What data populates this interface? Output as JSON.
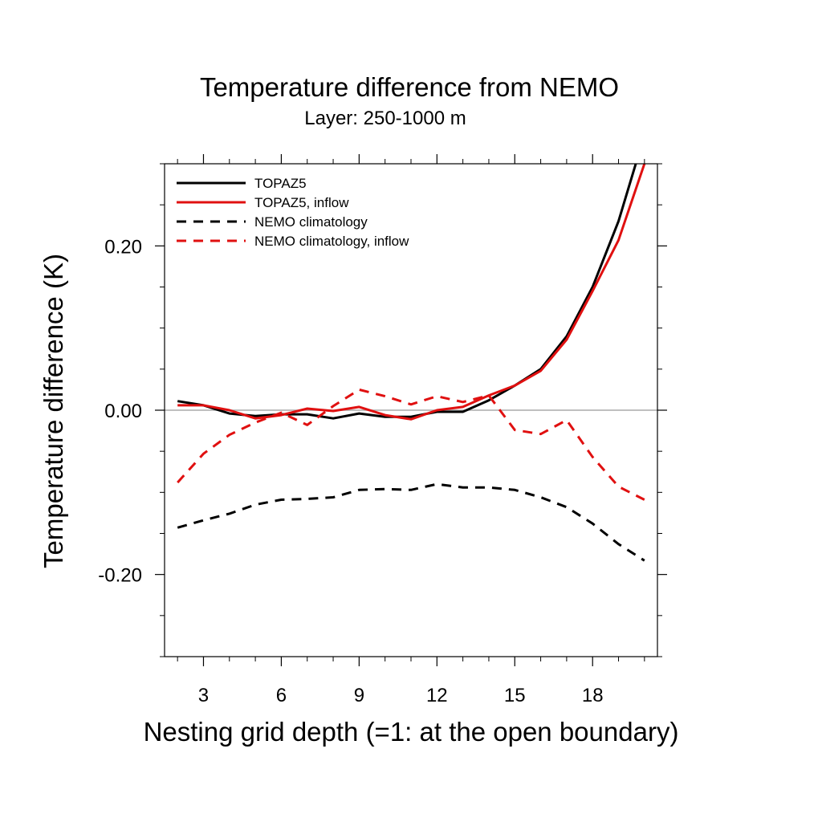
{
  "chart_data": {
    "type": "line",
    "title": "Temperature difference from NEMO",
    "subtitle": "Layer: 250-1000 m",
    "xlabel": "Nesting grid depth (=1: at the open boundary)",
    "ylabel": "Temperature difference (K)",
    "xlim": [
      1.5,
      20.5
    ],
    "ylim": [
      -0.3,
      0.3
    ],
    "x_ticks": [
      3,
      6,
      9,
      12,
      15,
      18
    ],
    "x_tick_labels": [
      "3",
      "6",
      "9",
      "12",
      "15",
      "18"
    ],
    "y_ticks": [
      -0.2,
      0.0,
      0.2
    ],
    "y_tick_labels": [
      "-0.20",
      "0.00",
      "0.20"
    ],
    "legend_position": "top-left",
    "grid": false,
    "zero_line": true,
    "x": [
      2,
      3,
      4,
      5,
      6,
      7,
      8,
      9,
      10,
      11,
      12,
      13,
      14,
      15,
      16,
      17,
      18,
      19,
      20
    ],
    "series": [
      {
        "name": "TOPAZ5",
        "color": "#000000",
        "dash": "solid",
        "values": [
          0.011,
          0.006,
          -0.004,
          -0.007,
          -0.005,
          -0.005,
          -0.01,
          -0.004,
          -0.008,
          -0.008,
          -0.002,
          -0.002,
          0.012,
          0.03,
          0.05,
          0.09,
          0.15,
          0.23,
          0.335
        ]
      },
      {
        "name": "TOPAZ5, inflow",
        "color": "#e01010",
        "dash": "solid",
        "values": [
          0.006,
          0.006,
          0.0,
          -0.01,
          -0.006,
          0.002,
          -0.001,
          0.004,
          -0.006,
          -0.011,
          0.0,
          0.004,
          0.018,
          0.03,
          0.048,
          0.086,
          0.145,
          0.207,
          0.3
        ]
      },
      {
        "name": "NEMO climatology",
        "color": "#000000",
        "dash": "dashed",
        "values": [
          -0.143,
          -0.134,
          -0.126,
          -0.115,
          -0.109,
          -0.108,
          -0.106,
          -0.097,
          -0.096,
          -0.097,
          -0.09,
          -0.094,
          -0.094,
          -0.097,
          -0.106,
          -0.118,
          -0.138,
          -0.163,
          -0.183
        ]
      },
      {
        "name": "NEMO climatology, inflow",
        "color": "#e01010",
        "dash": "dashed",
        "values": [
          -0.088,
          -0.053,
          -0.03,
          -0.015,
          -0.003,
          -0.018,
          0.005,
          0.025,
          0.017,
          0.007,
          0.017,
          0.01,
          0.018,
          -0.024,
          -0.029,
          -0.012,
          -0.057,
          -0.093,
          -0.109
        ]
      }
    ]
  }
}
